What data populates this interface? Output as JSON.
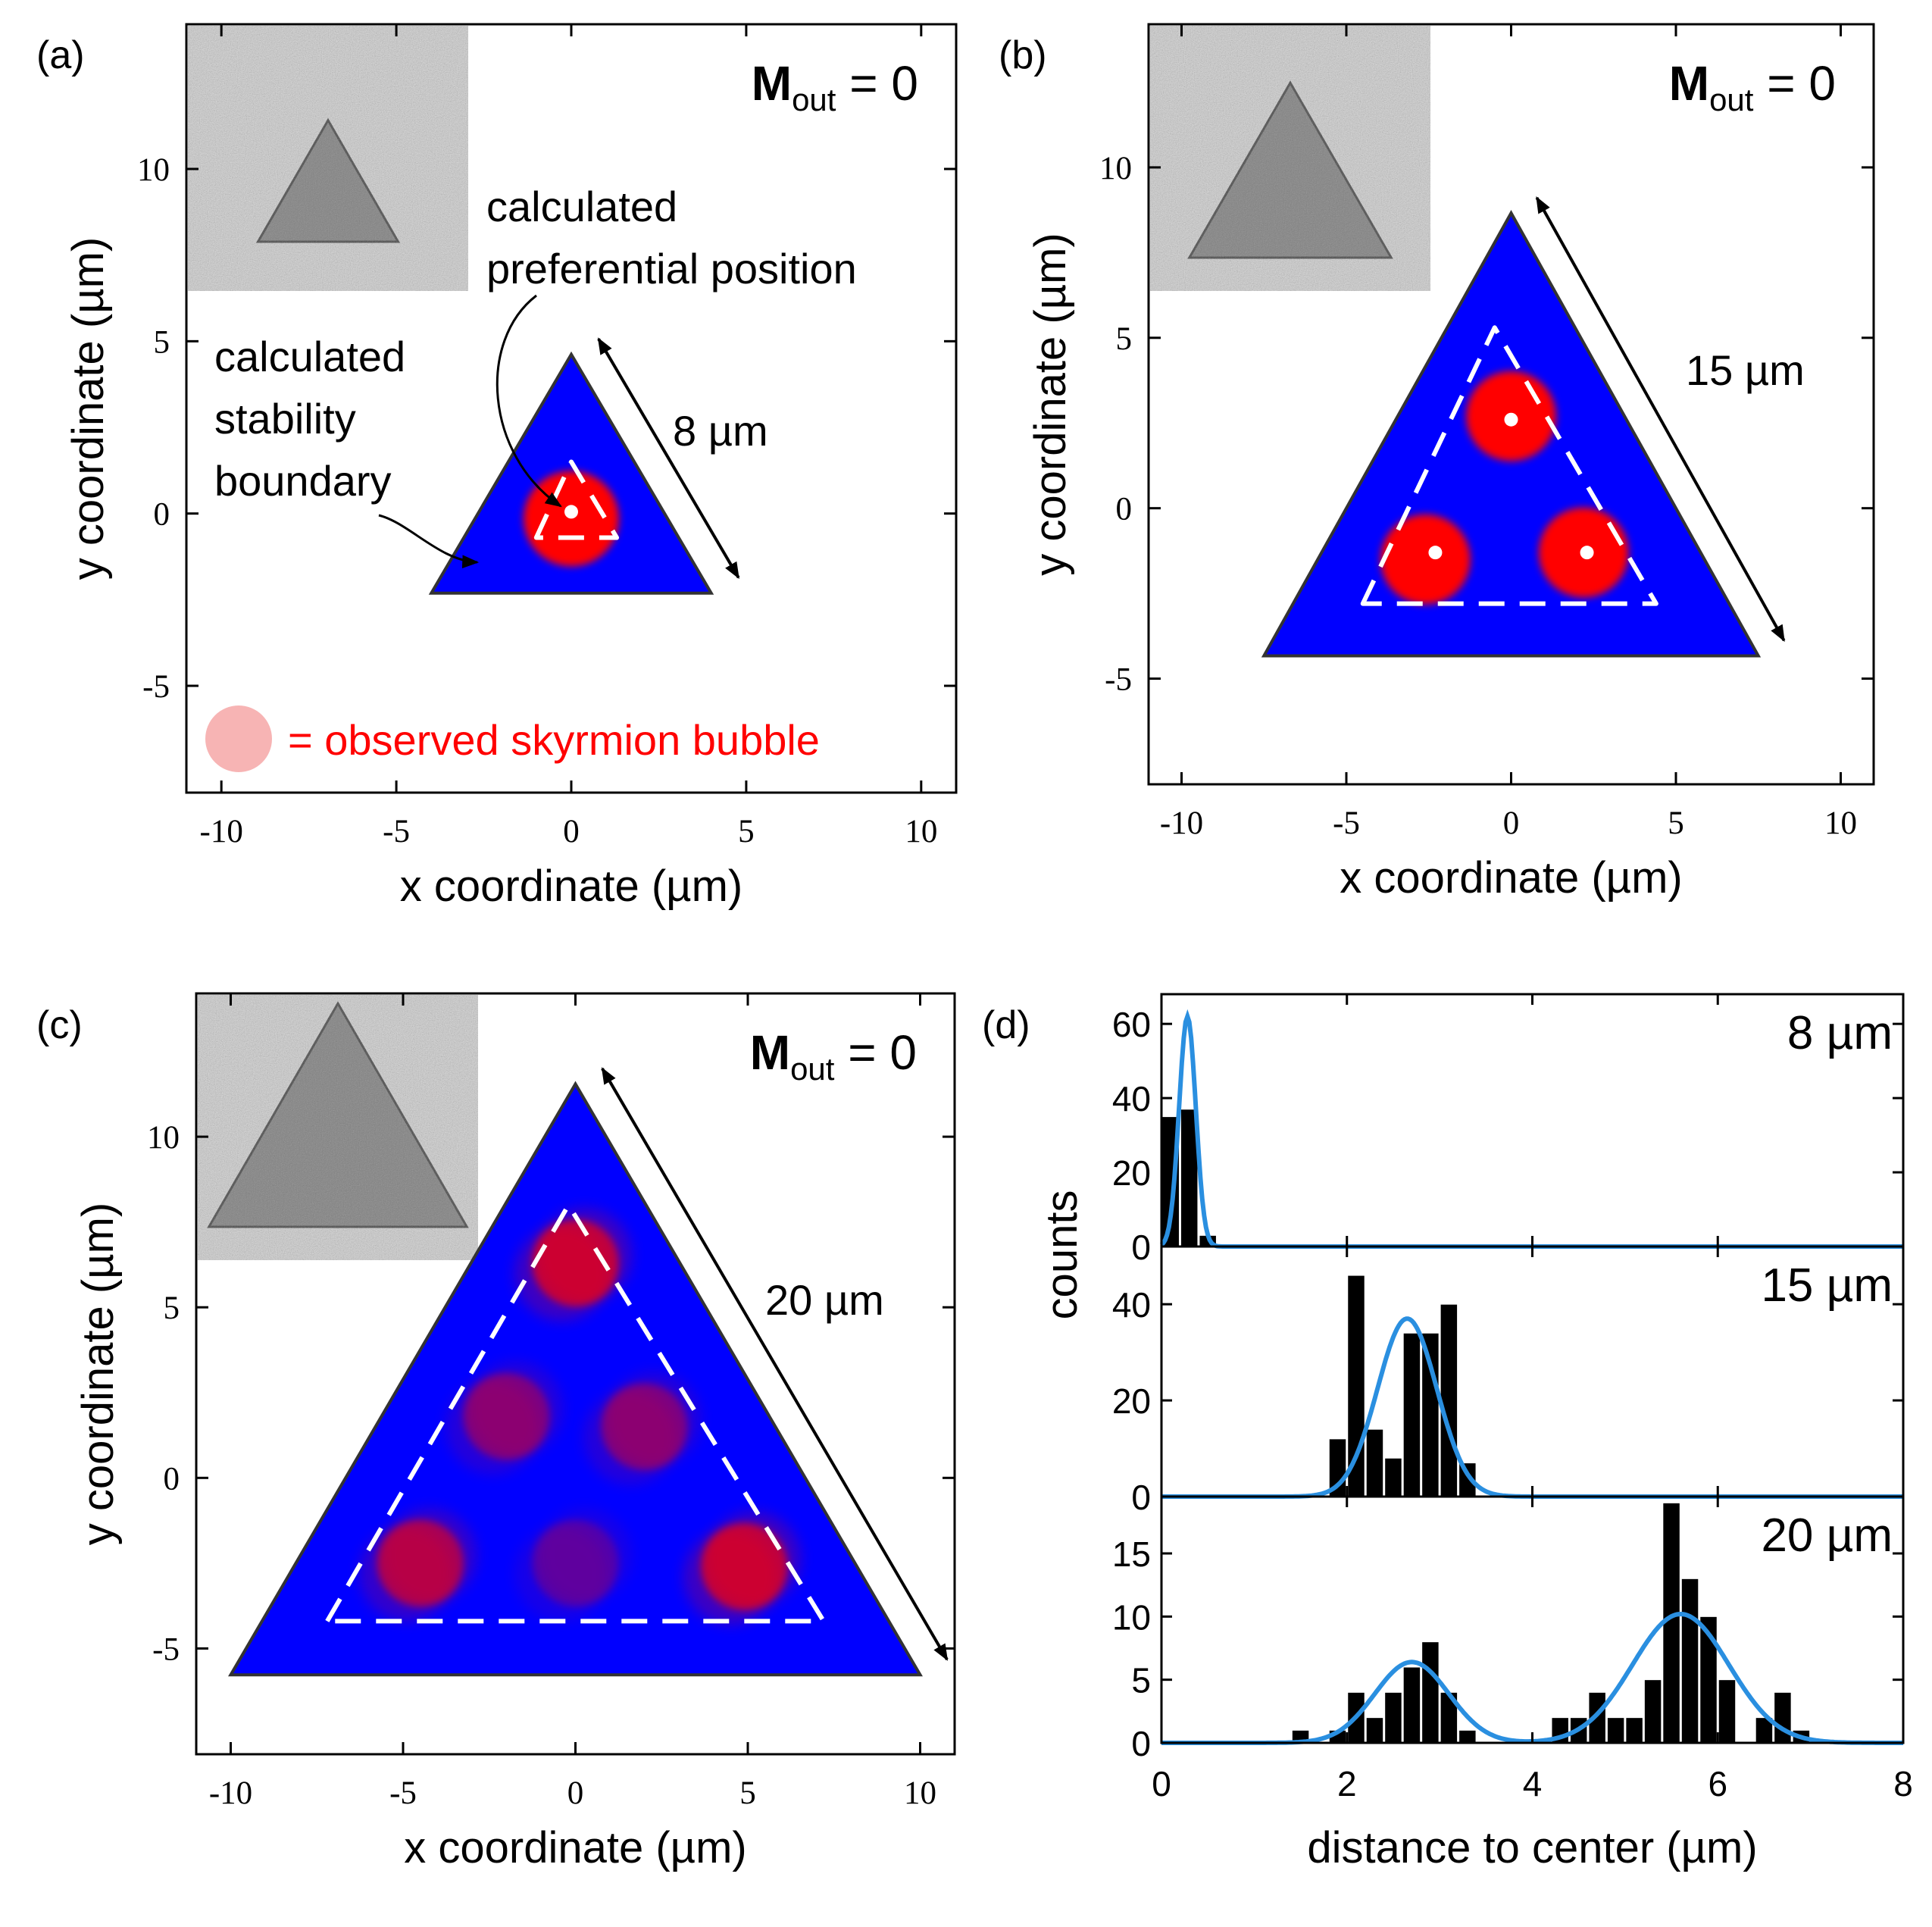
{
  "colors": {
    "triangle_fill": "#0000ff",
    "bubble": "#ff0000",
    "legend_bubble": "#f7b4b4",
    "legend_text": "#ff0000",
    "fit_curve": "#2a8fe0",
    "bar": "#000000"
  },
  "chart_data": [
    {
      "panel": "(a)",
      "type": "scatter",
      "mout": {
        "base": "M",
        "sub": "out",
        "rest": " = 0"
      },
      "xlabel": "x coordinate (µm)",
      "ylabel": "y coordinate (µm)",
      "xlim": [
        -11,
        11
      ],
      "ylim": [
        -8.1,
        14.2
      ],
      "xticks": [
        -10,
        -5,
        0,
        5,
        10
      ],
      "yticks": [
        -5,
        0,
        5,
        10
      ],
      "tick_labels_x": [
        "-10",
        "-5",
        "0",
        "5",
        "10"
      ],
      "tick_labels_y": [
        "-5",
        "0",
        "5",
        "10"
      ],
      "triangle_side_um": 8,
      "side_label": "8 µm",
      "stability_boundary": [
        [
          -1.0,
          -0.7
        ],
        [
          0.0,
          1.5
        ],
        [
          1.3,
          -0.7
        ]
      ],
      "preferential_positions": [
        [
          0.0,
          0.05
        ]
      ],
      "observed_bubbles": [
        [
          0.0,
          -0.15
        ]
      ],
      "annotations": [
        {
          "lines": [
            "calculated",
            "preferential  position"
          ]
        },
        {
          "lines": [
            "calculated",
            "stability",
            "boundary"
          ]
        }
      ],
      "legend": "= observed  skyrmion bubble"
    },
    {
      "panel": "(b)",
      "type": "scatter",
      "mout": {
        "base": "M",
        "sub": "out",
        "rest": " = 0"
      },
      "xlabel": "x coordinate (µm)",
      "ylabel": "y coordinate (µm)",
      "xlim": [
        -11,
        11
      ],
      "ylim": [
        -8.1,
        14.2
      ],
      "xticks": [
        -10,
        -5,
        0,
        5,
        10
      ],
      "yticks": [
        -5,
        0,
        5,
        10
      ],
      "tick_labels_x": [
        "-10",
        "-5",
        "0",
        "5",
        "10"
      ],
      "tick_labels_y": [
        "-5",
        "0",
        "5",
        "10"
      ],
      "triangle_side_um": 15,
      "side_label": "15 µm",
      "stability_boundary": [
        [
          -4.5,
          -2.8
        ],
        [
          -0.5,
          5.3
        ],
        [
          4.4,
          -2.8
        ]
      ],
      "preferential_positions": [
        [
          0.0,
          2.6
        ],
        [
          -2.3,
          -1.3
        ],
        [
          2.3,
          -1.3
        ]
      ],
      "observed_bubbles": [
        [
          0.0,
          2.7
        ],
        [
          -2.6,
          -1.5
        ],
        [
          2.2,
          -1.3
        ]
      ]
    },
    {
      "panel": "(c)",
      "type": "scatter",
      "mout": {
        "base": "M",
        "sub": "out",
        "rest": " = 0"
      },
      "xlabel": "x coordinate (µm)",
      "ylabel": "y coordinate (µm)",
      "xlim": [
        -11,
        11
      ],
      "ylim": [
        -8.1,
        14.2
      ],
      "xticks": [
        -10,
        -5,
        0,
        5,
        10
      ],
      "yticks": [
        -5,
        0,
        5,
        10
      ],
      "tick_labels_x": [
        "-10",
        "-5",
        "0",
        "5",
        "10"
      ],
      "tick_labels_y": [
        "-5",
        "0",
        "5",
        "10"
      ],
      "triangle_side_um": 20,
      "side_label": "20 µm",
      "stability_boundary": [
        [
          -7.2,
          -4.2
        ],
        [
          -0.2,
          8.0
        ],
        [
          7.2,
          -4.2
        ]
      ],
      "observed_bubbles": [
        {
          "x": 0.0,
          "y": 6.3,
          "strength": 0.95
        },
        {
          "x": -2.0,
          "y": 1.8,
          "strength": 0.55
        },
        {
          "x": 2.0,
          "y": 1.5,
          "strength": 0.55
        },
        {
          "x": -4.5,
          "y": -2.5,
          "strength": 0.8
        },
        {
          "x": 0.0,
          "y": -2.5,
          "strength": 0.35
        },
        {
          "x": 4.9,
          "y": -2.6,
          "strength": 0.95
        }
      ]
    },
    {
      "panel": "(d)",
      "type": "bar",
      "xlabel": "distance to center (µm)",
      "ylabel": "counts",
      "xlim": [
        0,
        8
      ],
      "xticks": [
        0,
        2,
        4,
        6,
        8
      ],
      "tick_labels_x": [
        "0",
        "2",
        "4",
        "6",
        "8"
      ],
      "bin_width": 0.2,
      "subplots": [
        {
          "label": "8 µm",
          "ylim": [
            0,
            68
          ],
          "yticks": [
            0,
            20,
            40,
            60
          ],
          "tick_labels_y": [
            "0",
            "20",
            "40",
            "60"
          ],
          "bin_starts": [
            0.0,
            0.2,
            0.4
          ],
          "counts": [
            35,
            37,
            3
          ],
          "fit": [
            {
              "amp": 62,
              "mu": 0.28,
              "sigma": 0.09
            }
          ]
        },
        {
          "label": "15 µm",
          "ylim": [
            0,
            52
          ],
          "yticks": [
            0,
            20,
            40
          ],
          "tick_labels_y": [
            "0",
            "20",
            "40"
          ],
          "bin_starts": [
            1.8,
            2.0,
            2.2,
            2.4,
            2.6,
            2.8,
            3.0,
            3.2
          ],
          "counts": [
            12,
            46,
            14,
            8,
            34,
            34,
            40,
            7
          ],
          "fit": [
            {
              "amp": 37,
              "mu": 2.65,
              "sigma": 0.32
            }
          ]
        },
        {
          "label": "20 µm",
          "ylim": [
            0,
            19.5
          ],
          "yticks": [
            0,
            5,
            10,
            15
          ],
          "tick_labels_y": [
            "0",
            "5",
            "10",
            "15"
          ],
          "bin_starts": [
            1.4,
            1.8,
            2.0,
            2.2,
            2.4,
            2.6,
            2.8,
            3.0,
            3.2,
            4.2,
            4.4,
            4.6,
            4.8,
            5.0,
            5.2,
            5.4,
            5.6,
            5.8,
            6.0,
            6.4,
            6.6,
            6.8
          ],
          "counts": [
            1,
            1,
            4,
            2,
            4,
            6,
            8,
            4,
            1,
            2,
            2,
            4,
            2,
            2,
            5,
            19,
            13,
            10,
            5,
            2,
            4,
            1
          ],
          "fit": [
            {
              "amp": 6.4,
              "mu": 2.7,
              "sigma": 0.4
            },
            {
              "amp": 10.2,
              "mu": 5.6,
              "sigma": 0.52
            }
          ]
        }
      ]
    }
  ]
}
